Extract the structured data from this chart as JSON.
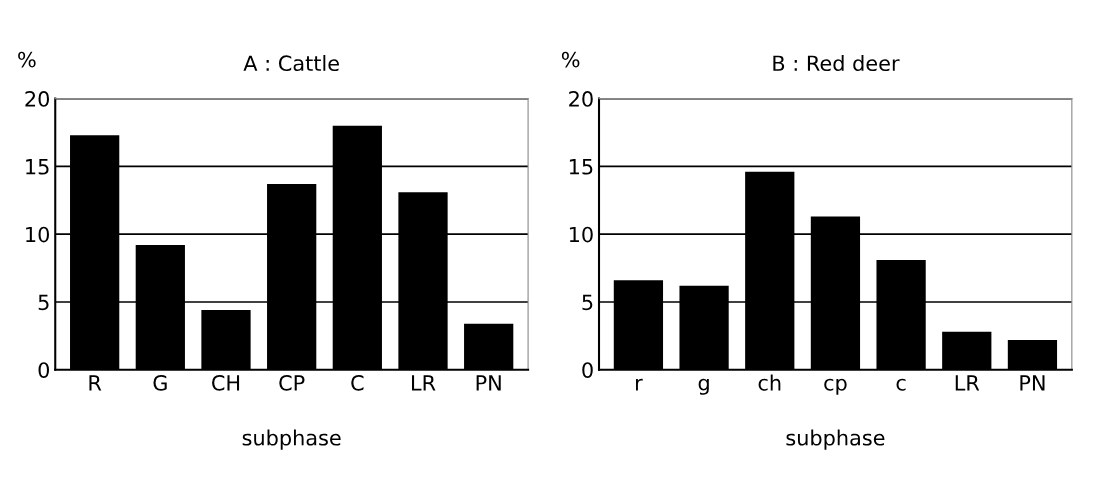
{
  "chart_data": [
    {
      "type": "bar",
      "title": "A : Cattle",
      "ylabel": "%",
      "xlabel": "subphase",
      "categories": [
        "R",
        "G",
        "CH",
        "CP",
        "C",
        "LR",
        "PN"
      ],
      "values": [
        17.3,
        9.2,
        4.4,
        13.7,
        18.0,
        13.1,
        3.4
      ],
      "color": "#000000",
      "ylim": [
        0,
        20
      ],
      "yticks": [
        0,
        5,
        10,
        15,
        20
      ],
      "grid": "y"
    },
    {
      "type": "bar",
      "title": "B : Red deer",
      "ylabel": "%",
      "xlabel": "subphase",
      "categories": [
        "r",
        "g",
        "ch",
        "cp",
        "c",
        "LR",
        "PN"
      ],
      "values": [
        6.6,
        6.2,
        14.6,
        11.3,
        8.1,
        2.8,
        2.2
      ],
      "color": "#000000",
      "ylim": [
        0,
        20
      ],
      "yticks": [
        0,
        5,
        10,
        15,
        20
      ],
      "grid": "y"
    }
  ]
}
